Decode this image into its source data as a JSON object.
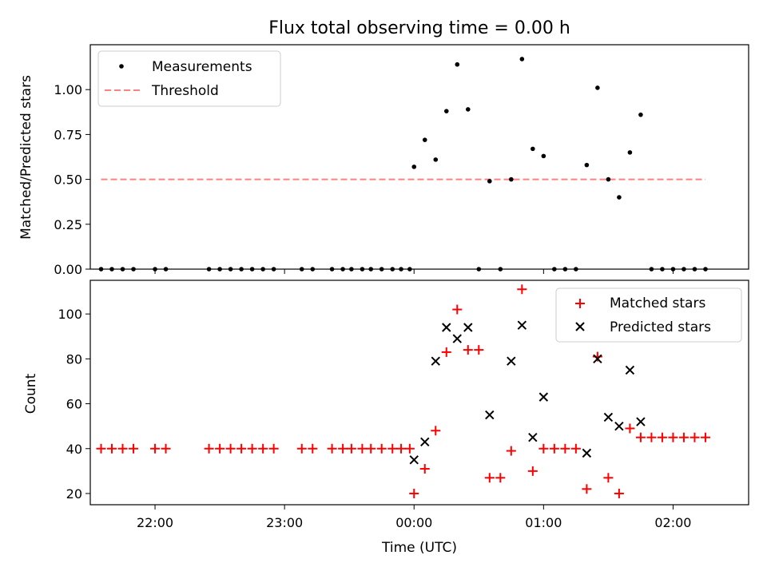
{
  "chart_data": [
    {
      "type": "scatter",
      "title": "Flux total observing time = 0.00 h",
      "ylabel": "Matched/Predicted stars",
      "xlabel": "",
      "xlim": [
        "21:30",
        "02:35"
      ],
      "ylim": [
        0,
        1.25
      ],
      "yticks": [
        "0.00",
        "0.25",
        "0.50",
        "0.75",
        "1.00"
      ],
      "legend_position": "top-left",
      "series": [
        {
          "name": "Measurements",
          "color": "#000000",
          "marker": "dot",
          "x": [
            "21:35",
            "21:40",
            "21:45",
            "21:50",
            "22:00",
            "22:05",
            "22:25",
            "22:30",
            "22:35",
            "22:40",
            "22:45",
            "22:50",
            "22:55",
            "23:08",
            "23:13",
            "23:22",
            "23:27",
            "23:31",
            "23:36",
            "23:40",
            "23:45",
            "23:50",
            "23:54",
            "23:58",
            "00:00",
            "00:05",
            "00:10",
            "00:15",
            "00:20",
            "00:25",
            "00:30",
            "00:35",
            "00:40",
            "00:45",
            "00:50",
            "00:55",
            "01:00",
            "01:05",
            "01:10",
            "01:15",
            "01:20",
            "01:25",
            "01:30",
            "01:35",
            "01:40",
            "01:45",
            "01:50",
            "01:55",
            "02:00",
            "02:05",
            "02:10",
            "02:15"
          ],
          "y": [
            0,
            0,
            0,
            0,
            0,
            0,
            0,
            0,
            0,
            0,
            0,
            0,
            0,
            0,
            0,
            0,
            0,
            0,
            0,
            0,
            0,
            0,
            0,
            0,
            0.57,
            0.72,
            0.61,
            0.88,
            1.14,
            0.89,
            0,
            0.49,
            0,
            0.5,
            1.17,
            0.67,
            0.63,
            0,
            0,
            0,
            0.58,
            1.01,
            0.5,
            0.4,
            0.65,
            0.86,
            0,
            0,
            0,
            0,
            0,
            0
          ]
        },
        {
          "name": "Threshold",
          "color": "#ff8080",
          "style": "dashed",
          "x": [
            "21:35",
            "02:15"
          ],
          "y": [
            0.5,
            0.5
          ]
        }
      ]
    },
    {
      "type": "scatter",
      "title": "",
      "ylabel": "Count",
      "xlabel": "Time (UTC)",
      "xlim": [
        "21:30",
        "02:35"
      ],
      "ylim": [
        15,
        115
      ],
      "yticks": [
        "20",
        "40",
        "60",
        "80",
        "100"
      ],
      "xticks": [
        "22:00",
        "23:00",
        "00:00",
        "01:00",
        "02:00"
      ],
      "legend_position": "top-right",
      "series": [
        {
          "name": "Matched stars",
          "color": "#ff0000",
          "marker": "plus",
          "x": [
            "21:35",
            "21:40",
            "21:45",
            "21:50",
            "22:00",
            "22:05",
            "22:25",
            "22:30",
            "22:35",
            "22:40",
            "22:45",
            "22:50",
            "22:55",
            "23:08",
            "23:13",
            "23:22",
            "23:27",
            "23:31",
            "23:36",
            "23:40",
            "23:45",
            "23:50",
            "23:54",
            "23:58",
            "00:00",
            "00:05",
            "00:10",
            "00:15",
            "00:20",
            "00:25",
            "00:30",
            "00:35",
            "00:40",
            "00:45",
            "00:50",
            "00:55",
            "01:00",
            "01:05",
            "01:10",
            "01:15",
            "01:20",
            "01:25",
            "01:30",
            "01:35",
            "01:40",
            "01:45",
            "01:50",
            "01:55",
            "02:00",
            "02:05",
            "02:10",
            "02:15"
          ],
          "y": [
            40,
            40,
            40,
            40,
            40,
            40,
            40,
            40,
            40,
            40,
            40,
            40,
            40,
            40,
            40,
            40,
            40,
            40,
            40,
            40,
            40,
            40,
            40,
            40,
            20,
            31,
            48,
            83,
            102,
            84,
            84,
            27,
            27,
            39,
            111,
            30,
            40,
            40,
            40,
            40,
            22,
            81,
            27,
            20,
            49,
            45,
            45,
            45,
            45,
            45,
            45,
            45
          ]
        },
        {
          "name": "Predicted stars",
          "color": "#000000",
          "marker": "x",
          "x": [
            "00:00",
            "00:05",
            "00:10",
            "00:15",
            "00:20",
            "00:25",
            "00:35",
            "00:45",
            "00:50",
            "00:55",
            "01:00",
            "01:20",
            "01:25",
            "01:30",
            "01:35",
            "01:40",
            "01:45"
          ],
          "y": [
            35,
            43,
            79,
            94,
            89,
            94,
            55,
            79,
            95,
            45,
            63,
            38,
            80,
            54,
            50,
            75,
            52
          ]
        }
      ]
    }
  ]
}
